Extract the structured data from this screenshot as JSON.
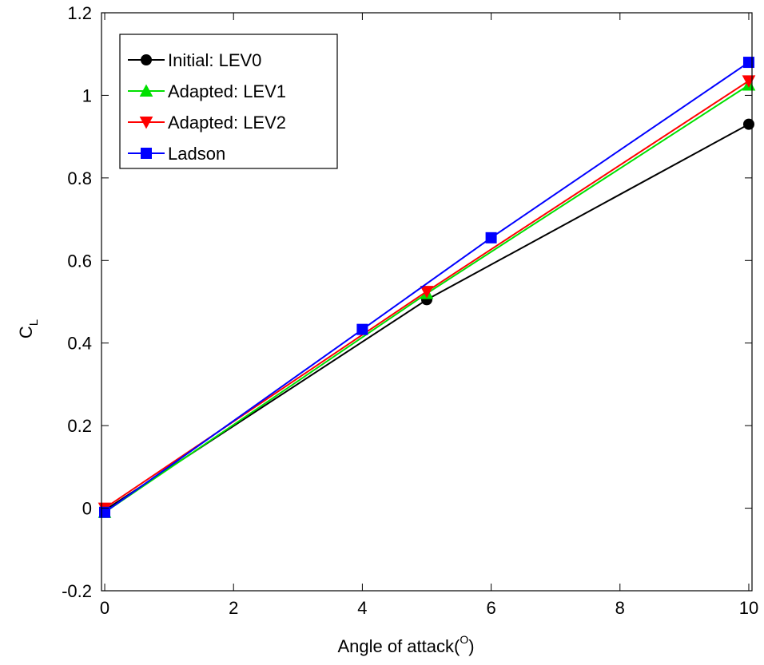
{
  "chart_data": {
    "type": "line",
    "title": "",
    "xlabel": "Angle of attack(",
    "xlabel_sup": "O",
    "xlabel_close": ")",
    "ylabel": "C",
    "ylabel_sub": "L",
    "xlim": [
      -0.05,
      10.05
    ],
    "ylim": [
      -0.2,
      1.2
    ],
    "xticks": [
      0,
      2,
      4,
      6,
      8,
      10
    ],
    "yticks": [
      -0.2,
      0,
      0.2,
      0.4,
      0.6,
      0.8,
      1,
      1.2
    ],
    "xtick_labels": [
      "0",
      "2",
      "4",
      "6",
      "8",
      "10"
    ],
    "ytick_labels": [
      "-0.2",
      "0",
      "0.2",
      "0.4",
      "0.6",
      "0.8",
      "1",
      "1.2"
    ],
    "grid": false,
    "legend_position": "top-left",
    "series": [
      {
        "name": "Initial: LEV0",
        "color": "#000000",
        "marker": "circle",
        "x": [
          0,
          5,
          10
        ],
        "y": [
          -0.005,
          0.505,
          0.93
        ]
      },
      {
        "name": "Adapted: LEV1",
        "color": "#00e000",
        "marker": "triangle-up",
        "x": [
          0,
          5,
          10
        ],
        "y": [
          -0.01,
          0.52,
          1.025
        ]
      },
      {
        "name": "Adapted: LEV2",
        "color": "#ff0000",
        "marker": "triangle-down",
        "x": [
          0,
          5,
          10
        ],
        "y": [
          0.0,
          0.525,
          1.035
        ]
      },
      {
        "name": "Ladson",
        "color": "#0000ff",
        "marker": "square",
        "x": [
          0,
          4,
          6,
          10
        ],
        "y": [
          -0.01,
          0.433,
          0.655,
          1.08
        ]
      }
    ]
  }
}
